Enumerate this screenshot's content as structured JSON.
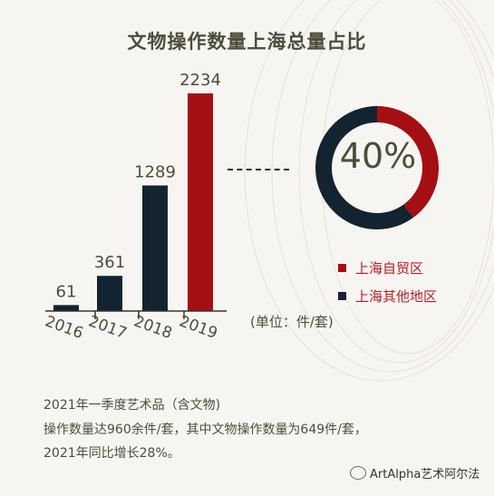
{
  "title": "文物操作数量上海总量占比",
  "chart_data": [
    {
      "type": "bar",
      "categories": [
        "2016",
        "2017",
        "2018",
        "2019"
      ],
      "values": [
        61,
        361,
        1289,
        2234
      ],
      "highlight_index": 3,
      "ylim": [
        0,
        2234
      ],
      "unit_note": "(单位：件/套)"
    },
    {
      "type": "pie",
      "style": "donut",
      "center_label": "40%",
      "slices": [
        {
          "label": "上海自贸区",
          "value": 40
        },
        {
          "label": "上海其他地区",
          "value": 60
        }
      ]
    }
  ],
  "colors": {
    "dark": "#13232f",
    "red": "#a50f14",
    "text": "#4b4e3c",
    "legend_text": "#b3202a"
  },
  "note": {
    "line1": "2021年一季度艺术品（含文物)",
    "line2": "操作数量达960余件/套，其中文物操作数量为649件/套，",
    "line3": "2021年同比增长28%。"
  },
  "watermark": "ArtAlpha艺术阿尔法"
}
